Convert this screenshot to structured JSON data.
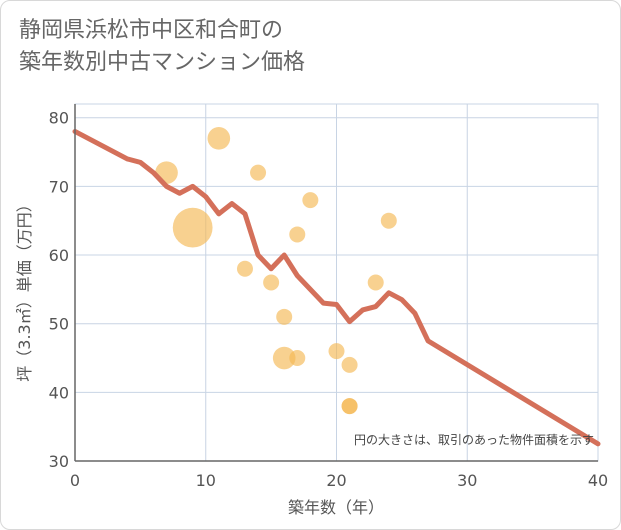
{
  "chart_data": {
    "type": "scatter",
    "title": "静岡県浜松市中区和合町の\n築年数別中古マンション価格",
    "xlabel": "築年数（年）",
    "ylabel": "坪（3.3㎡）単価（万円）",
    "xlim": [
      0,
      40
    ],
    "ylim": [
      30,
      82
    ],
    "xticks": [
      0,
      10,
      20,
      30,
      40
    ],
    "yticks": [
      30,
      40,
      50,
      60,
      70,
      80
    ],
    "grid": true,
    "note": "円の大きさは、取引のあった物件面積を示す",
    "colors": {
      "bubble": "#f5b955",
      "line": "#d4705a",
      "grid": "#c8d4e4",
      "axis": "#666666"
    },
    "points": [
      {
        "x": 7,
        "y": 72,
        "size": 2
      },
      {
        "x": 9,
        "y": 64,
        "size": 5
      },
      {
        "x": 11,
        "y": 77,
        "size": 2
      },
      {
        "x": 13,
        "y": 58,
        "size": 1
      },
      {
        "x": 14,
        "y": 72,
        "size": 1
      },
      {
        "x": 15,
        "y": 56,
        "size": 1
      },
      {
        "x": 16,
        "y": 51,
        "size": 1
      },
      {
        "x": 16,
        "y": 45,
        "size": 2
      },
      {
        "x": 17,
        "y": 63,
        "size": 1
      },
      {
        "x": 17,
        "y": 45,
        "size": 1
      },
      {
        "x": 18,
        "y": 68,
        "size": 1
      },
      {
        "x": 20,
        "y": 46,
        "size": 1
      },
      {
        "x": 21,
        "y": 44,
        "size": 1
      },
      {
        "x": 21,
        "y": 38,
        "size": 1
      },
      {
        "x": 21,
        "y": 38,
        "size": 1
      },
      {
        "x": 23,
        "y": 56,
        "size": 1
      },
      {
        "x": 24,
        "y": 65,
        "size": 1
      }
    ],
    "trend": {
      "x": [
        0,
        2,
        4,
        5,
        6,
        7,
        8,
        9,
        10,
        11,
        12,
        13,
        14,
        15,
        16,
        17,
        18,
        19,
        20,
        21,
        22,
        23,
        24,
        25,
        26,
        27,
        40
      ],
      "y": [
        78,
        76,
        74,
        73.5,
        72,
        70,
        69,
        70,
        68.5,
        66,
        67.5,
        66,
        60,
        58,
        60,
        57,
        55,
        53,
        52.8,
        50.3,
        52,
        52.5,
        54.5,
        53.5,
        51.5,
        47.5,
        32.5
      ]
    }
  }
}
